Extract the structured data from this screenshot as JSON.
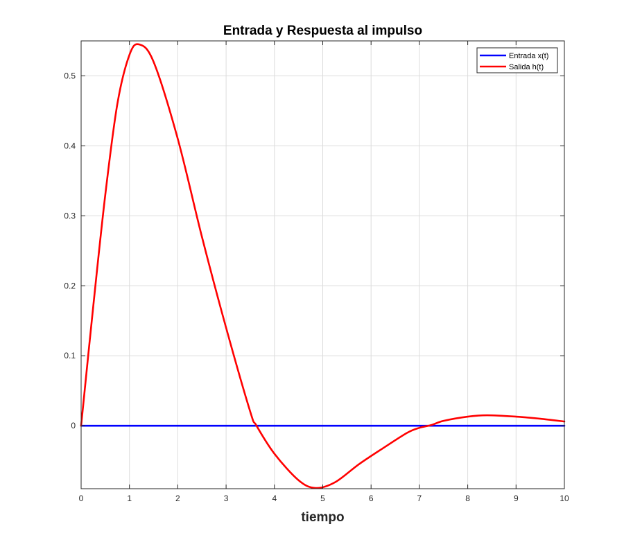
{
  "chart_data": {
    "type": "line",
    "title": "Entrada y Respuesta al impulso",
    "xlabel": "tiempo",
    "ylabel": "",
    "xlim": [
      0,
      10
    ],
    "ylim": [
      -0.09,
      0.55
    ],
    "xticks": [
      "0",
      "1",
      "2",
      "3",
      "4",
      "5",
      "6",
      "7",
      "8",
      "9",
      "10"
    ],
    "yticks": [
      "0",
      "0.1",
      "0.2",
      "0.3",
      "0.4",
      "0.5"
    ],
    "grid": true,
    "legend_position": "top-right",
    "series": [
      {
        "name": "Entrada x(t)",
        "color": "#0000ff",
        "x": [
          0,
          10
        ],
        "y": [
          0,
          0
        ]
      },
      {
        "name": "Salida h(t)",
        "color": "#ff0000",
        "x": [
          0,
          0.25,
          0.5,
          0.75,
          1.0,
          1.2,
          1.5,
          2.0,
          2.5,
          3.0,
          3.5,
          3.63,
          4.0,
          4.5,
          4.85,
          5.25,
          5.75,
          6.25,
          6.75,
          7.0,
          7.25,
          7.5,
          8.0,
          8.4,
          9.0,
          9.5,
          10.0
        ],
        "y": [
          0,
          0.17,
          0.33,
          0.46,
          0.53,
          0.545,
          0.52,
          0.41,
          0.27,
          0.14,
          0.02,
          0,
          -0.04,
          -0.078,
          -0.089,
          -0.081,
          -0.055,
          -0.032,
          -0.01,
          -0.003,
          0.001,
          0.007,
          0.013,
          0.015,
          0.013,
          0.01,
          0.006
        ]
      }
    ]
  }
}
